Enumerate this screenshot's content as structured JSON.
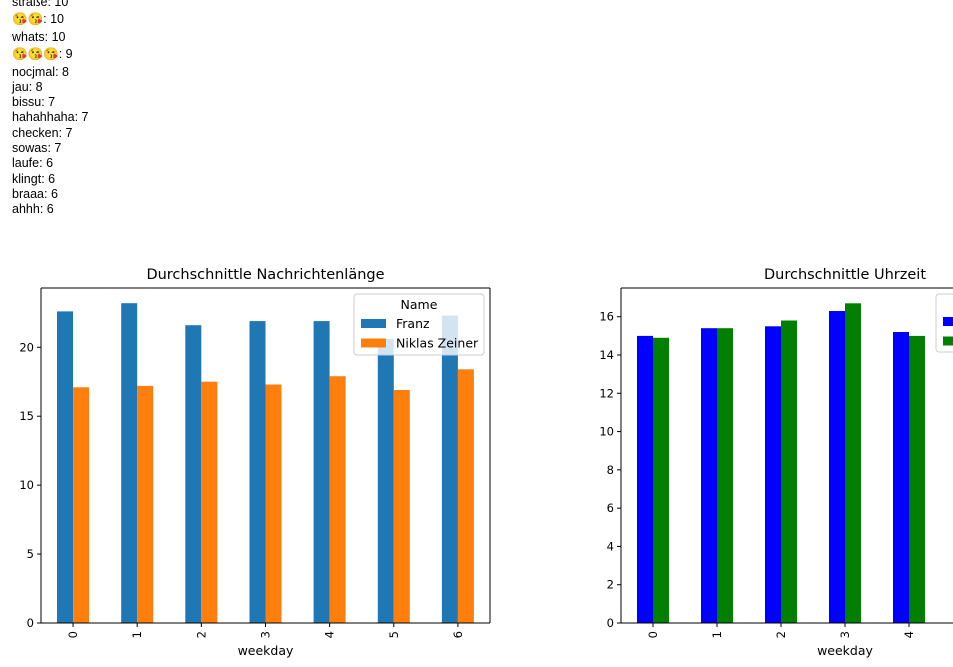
{
  "word_counts": [
    {
      "word": "straße",
      "count": "10"
    },
    {
      "word": "😘😘",
      "count": "10",
      "emoji": true
    },
    {
      "word": "whats",
      "count": "10"
    },
    {
      "word": "😘😘😘",
      "count": "9",
      "emoji": true
    },
    {
      "word": "nocjmal",
      "count": "8"
    },
    {
      "word": "jau",
      "count": "8"
    },
    {
      "word": "bissu",
      "count": "7"
    },
    {
      "word": "hahahhaha",
      "count": "7"
    },
    {
      "word": "checken",
      "count": "7"
    },
    {
      "word": "sowas",
      "count": "7"
    },
    {
      "word": "laufe",
      "count": "6"
    },
    {
      "word": "klingt",
      "count": "6"
    },
    {
      "word": "braaa",
      "count": "6"
    },
    {
      "word": "ahhh",
      "count": "6"
    }
  ],
  "chart_data": [
    {
      "type": "bar",
      "title": "Durchschnittle Nachrichtenlänge",
      "xlabel": "weekday",
      "ylabel": "",
      "categories": [
        "0",
        "1",
        "2",
        "3",
        "4",
        "5",
        "6"
      ],
      "ylim": [
        0,
        24.3
      ],
      "yticks": [
        "0",
        "5",
        "10",
        "15",
        "20"
      ],
      "grid": false,
      "legend": {
        "title": "Name",
        "position": "top-right"
      },
      "series": [
        {
          "name": "Franz",
          "color": "#1f77b4",
          "values": [
            22.6,
            23.2,
            21.6,
            21.9,
            21.9,
            20.6,
            22.3
          ]
        },
        {
          "name": "Niklas Zeiner",
          "color": "#ff7f0e",
          "values": [
            17.1,
            17.2,
            17.5,
            17.3,
            17.9,
            16.9,
            18.4
          ]
        }
      ]
    },
    {
      "type": "bar",
      "title": "Durchschnittle Uhrzeit",
      "xlabel": "weekday",
      "ylabel": "",
      "categories": [
        "0",
        "1",
        "2",
        "3",
        "4"
      ],
      "ylim": [
        0,
        17.5
      ],
      "yticks": [
        "0",
        "2",
        "4",
        "6",
        "8",
        "10",
        "12",
        "14",
        "16"
      ],
      "grid": false,
      "legend": {
        "title": "",
        "position": "top-right"
      },
      "series": [
        {
          "color": "#0000ff",
          "values": [
            15.0,
            15.4,
            15.5,
            16.3,
            15.2
          ]
        },
        {
          "color": "#008000",
          "values": [
            14.9,
            15.4,
            15.8,
            16.7,
            15.0
          ]
        }
      ]
    }
  ]
}
